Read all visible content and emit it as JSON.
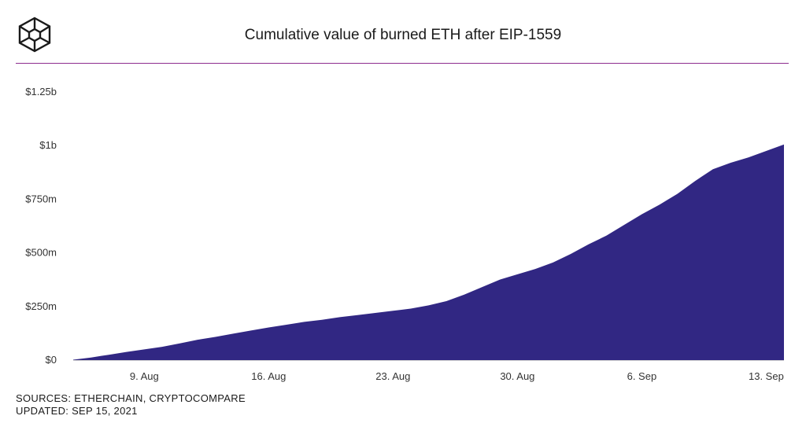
{
  "header": {
    "logo_icon": "cube-icon",
    "title": "Cumulative value of burned ETH after EIP-1559"
  },
  "chart_data": {
    "type": "area",
    "title": "Cumulative value of burned ETH after EIP-1559",
    "xlabel": "",
    "ylabel": "",
    "x_ticks": [
      "9. Aug",
      "16. Aug",
      "23. Aug",
      "30. Aug",
      "6. Sep",
      "13. Sep"
    ],
    "y_ticks": [
      "$0",
      "$250m",
      "$500m",
      "$750m",
      "$1b",
      "$1.25b"
    ],
    "ylim": [
      0,
      1250
    ],
    "y_unit": "million USD",
    "xlim": [
      "2021-08-05",
      "2021-09-14"
    ],
    "grid": false,
    "area_color": "#312783",
    "series": [
      {
        "x": [
          "2021-08-05",
          "2021-08-06",
          "2021-08-07",
          "2021-08-08",
          "2021-08-09",
          "2021-08-10",
          "2021-08-11",
          "2021-08-12",
          "2021-08-13",
          "2021-08-14",
          "2021-08-15",
          "2021-08-16",
          "2021-08-17",
          "2021-08-18",
          "2021-08-19",
          "2021-08-20",
          "2021-08-21",
          "2021-08-22",
          "2021-08-23",
          "2021-08-24",
          "2021-08-25",
          "2021-08-26",
          "2021-08-27",
          "2021-08-28",
          "2021-08-29",
          "2021-08-30",
          "2021-08-31",
          "2021-09-01",
          "2021-09-02",
          "2021-09-03",
          "2021-09-04",
          "2021-09-05",
          "2021-09-06",
          "2021-09-07",
          "2021-09-08",
          "2021-09-09",
          "2021-09-10",
          "2021-09-11",
          "2021-09-12",
          "2021-09-13",
          "2021-09-14"
        ],
        "values": [
          2,
          12,
          25,
          38,
          50,
          62,
          78,
          95,
          108,
          123,
          138,
          152,
          165,
          178,
          188,
          200,
          210,
          220,
          230,
          240,
          255,
          275,
          305,
          340,
          375,
          400,
          425,
          455,
          495,
          540,
          580,
          630,
          680,
          725,
          775,
          835,
          890,
          920,
          945,
          975,
          1005
        ]
      }
    ]
  },
  "footer": {
    "sources": "SOURCES: ETHERCHAIN, CRYPTOCOMPARE",
    "updated": "UPDATED: SEP 15, 2021"
  }
}
